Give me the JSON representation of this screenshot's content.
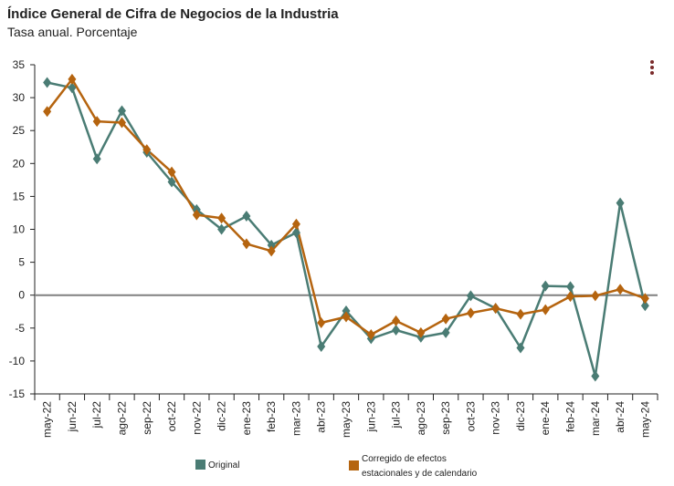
{
  "header": {
    "title": "Índice General de Cifra de Negocios de la Industria",
    "subtitle": "Tasa anual. Porcentaje"
  },
  "menu": {
    "icon": "kebab-menu-icon"
  },
  "chart_data": {
    "type": "line",
    "title": "Índice General de Cifra de Negocios de la Industria",
    "subtitle": "Tasa anual. Porcentaje",
    "xlabel": "",
    "ylabel": "",
    "ylim": [
      -15,
      35
    ],
    "yticks": [
      35,
      30,
      25,
      20,
      15,
      10,
      5,
      0,
      -5,
      -10,
      -15
    ],
    "categories": [
      "may-22",
      "jun-22",
      "jul-22",
      "ago-22",
      "sep-22",
      "oct-22",
      "nov-22",
      "dic-22",
      "ene-23",
      "feb-23",
      "mar-23",
      "abr-23",
      "may-23",
      "jun-23",
      "jul-23",
      "ago-23",
      "sep-23",
      "oct-23",
      "nov-23",
      "dic-23",
      "ene-24",
      "feb-24",
      "mar-24",
      "abr-24",
      "may-24"
    ],
    "series": [
      {
        "name": "Original",
        "color": "#4a7c74",
        "values": [
          32.3,
          31.5,
          20.7,
          28.0,
          21.7,
          17.2,
          13.0,
          10.0,
          12.0,
          7.6,
          9.5,
          -7.8,
          -2.4,
          -6.6,
          -5.3,
          -6.4,
          -5.7,
          -0.1,
          -2.0,
          -8.0,
          1.4,
          1.3,
          -12.3,
          14.0,
          -1.6
        ]
      },
      {
        "name": "Corregido de efectos estacionales y de calendario",
        "color": "#b5640f",
        "values": [
          27.9,
          32.8,
          26.4,
          26.2,
          22.1,
          18.7,
          12.2,
          11.7,
          7.8,
          6.7,
          10.8,
          -4.2,
          -3.3,
          -6.0,
          -3.9,
          -5.7,
          -3.6,
          -2.7,
          -2.0,
          -2.9,
          -2.2,
          -0.2,
          -0.1,
          0.9,
          -0.5
        ]
      }
    ],
    "legend": {
      "position": "bottom",
      "items": [
        {
          "label": "Original",
          "color": "#4a7c74"
        },
        {
          "label_line1": "Corregido de efectos",
          "label_line2": "estacionales y de calendario",
          "color": "#b5640f"
        }
      ]
    },
    "grid": false,
    "zero_line_color": "#808080"
  }
}
